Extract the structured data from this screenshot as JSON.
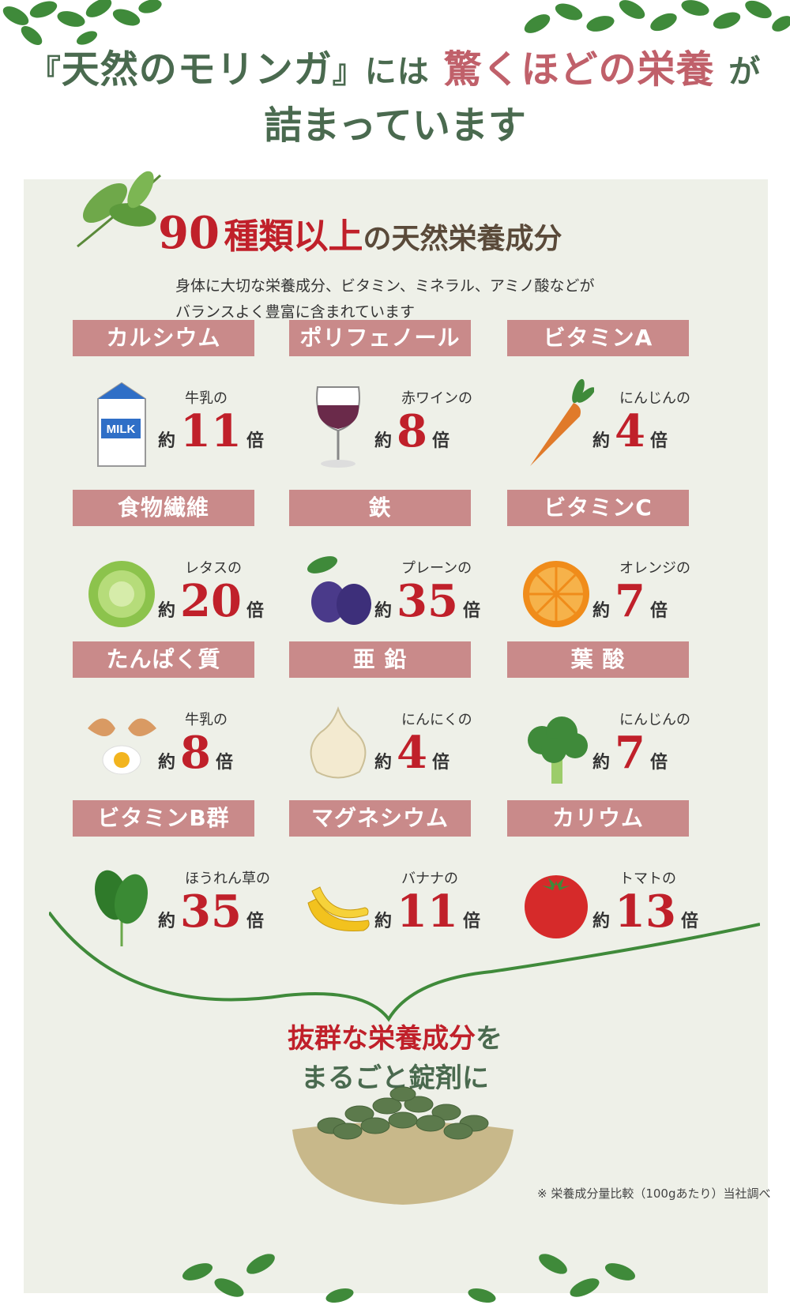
{
  "header": {
    "bracket_open": "『",
    "brand": "天然のモリンガ",
    "bracket_close": "』",
    "ni_wa": "には",
    "accent": "驚くほどの栄養",
    "ga": "が",
    "line2": "詰まっています"
  },
  "subtitle": {
    "number": "90",
    "kinds": "種類以上",
    "rest": "の天然栄養成分"
  },
  "description": {
    "line1": "身体に大切な栄養成分、ビタミン、ミネラル、アミノ酸などが",
    "line2": "バランスよく豊富に含まれています"
  },
  "colors": {
    "label_bg": "#c98a8a",
    "accent_red": "#c0202a",
    "headline_green": "#4a6a4f",
    "panel_bg": "#eef0e8"
  },
  "nutrients": [
    {
      "label": "カルシウム",
      "food": "牛乳の",
      "pre": "約",
      "value": "11",
      "post": "倍",
      "icon": "milk-carton-icon"
    },
    {
      "label": "ポリフェノール",
      "food": "赤ワインの",
      "pre": "約",
      "value": "8",
      "post": "倍",
      "icon": "wine-glass-icon"
    },
    {
      "label": "ビタミンA",
      "food": "にんじんの",
      "pre": "約",
      "value": "4",
      "post": "倍",
      "icon": "carrot-icon"
    },
    {
      "label": "食物繊維",
      "food": "レタスの",
      "pre": "約",
      "value": "20",
      "post": "倍",
      "icon": "lettuce-icon"
    },
    {
      "label": "鉄",
      "food": "プレーンの",
      "pre": "約",
      "value": "35",
      "post": "倍",
      "icon": "plum-icon"
    },
    {
      "label": "ビタミンC",
      "food": "オレンジの",
      "pre": "約",
      "value": "7",
      "post": "倍",
      "icon": "orange-icon"
    },
    {
      "label": "たんぱく質",
      "food": "牛乳の",
      "pre": "約",
      "value": "8",
      "post": "倍",
      "icon": "egg-icon"
    },
    {
      "label": "亜 鉛",
      "food": "にんにくの",
      "pre": "約",
      "value": "4",
      "post": "倍",
      "icon": "garlic-icon"
    },
    {
      "label": "葉 酸",
      "food": "にんじんの",
      "pre": "約",
      "value": "7",
      "post": "倍",
      "icon": "broccoli-icon"
    },
    {
      "label": "ビタミンB群",
      "food": "ほうれん草の",
      "pre": "約",
      "value": "35",
      "post": "倍",
      "icon": "spinach-icon"
    },
    {
      "label": "マグネシウム",
      "food": "バナナの",
      "pre": "約",
      "value": "11",
      "post": "倍",
      "icon": "banana-icon"
    },
    {
      "label": "カリウム",
      "food": "トマトの",
      "pre": "約",
      "value": "13",
      "post": "倍",
      "icon": "tomato-icon"
    }
  ],
  "bottom": {
    "red": "抜群な栄養成分",
    "wo": "を",
    "line2": "まるごと錠剤に",
    "note": "※ 栄養成分量比較（100gあたり）当社調べ"
  }
}
